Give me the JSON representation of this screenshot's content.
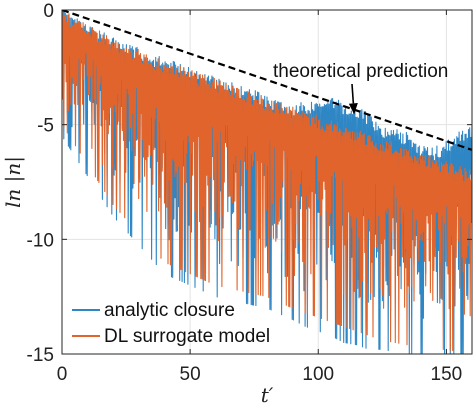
{
  "chart_data": {
    "type": "line",
    "xlabel": "t′",
    "ylabel": "ln |n|",
    "xlim": [
      0,
      160
    ],
    "ylim": [
      -15,
      0
    ],
    "x_ticks": [
      0,
      50,
      100,
      150
    ],
    "y_ticks": [
      0,
      -5,
      -10,
      -15
    ],
    "grid": true,
    "legend_position": "bottom-left",
    "series": [
      {
        "name": "analytic closure",
        "color": "#2f86c5",
        "description_style": "rapidly oscillating envelope",
        "envelope_x": [
          0,
          20,
          40,
          60,
          80,
          90,
          95,
          100,
          105,
          110,
          115,
          120,
          125,
          130,
          135,
          140,
          145,
          150,
          155,
          160
        ],
        "envelope_upper": [
          0,
          -1.2,
          -2.1,
          -2.9,
          -3.7,
          -4.1,
          -4.0,
          -3.9,
          -3.8,
          -4.0,
          -4.2,
          -4.5,
          -5.0,
          -5.2,
          -5.3,
          -5.8,
          -6.0,
          -5.7,
          -5.2,
          -5.0
        ],
        "envelope_lower": [
          -5.5,
          -9.0,
          -11.5,
          -12.5,
          -13.0,
          -13.5,
          -13.8,
          -14.0,
          -14.2,
          -14.5,
          -14.6,
          -14.8,
          -14.8,
          -14.9,
          -15.0,
          -15.0,
          -15.0,
          -15.0,
          -15.0,
          -15.0
        ]
      },
      {
        "name": "DL surrogate model",
        "color": "#e0642b",
        "description_style": "rapidly oscillating envelope",
        "envelope_x": [
          0,
          20,
          40,
          60,
          80,
          90,
          95,
          100,
          105,
          110,
          115,
          120,
          125,
          130,
          135,
          140,
          145,
          150,
          155,
          160
        ],
        "envelope_upper": [
          0,
          -1.2,
          -2.2,
          -3.0,
          -3.8,
          -4.2,
          -4.4,
          -4.6,
          -4.8,
          -5.0,
          -5.2,
          -5.4,
          -5.6,
          -5.8,
          -6.0,
          -6.2,
          -6.4,
          -6.6,
          -6.8,
          -7.0
        ],
        "envelope_lower": [
          -5.0,
          -8.5,
          -11.0,
          -12.0,
          -12.5,
          -13.0,
          -13.2,
          -13.4,
          -13.6,
          -13.8,
          -14.0,
          -14.2,
          -14.4,
          -14.5,
          -14.6,
          -14.7,
          -14.8,
          -14.8,
          -14.9,
          -15.0
        ]
      },
      {
        "name": "theoretical prediction",
        "color": "#000000",
        "style": "dashed",
        "x": [
          0,
          160
        ],
        "y": [
          0,
          -6.1
        ]
      }
    ],
    "annotations": [
      {
        "text": "theoretical prediction",
        "arrow_to_x": 114,
        "arrow_to_y": -4.55
      }
    ]
  }
}
